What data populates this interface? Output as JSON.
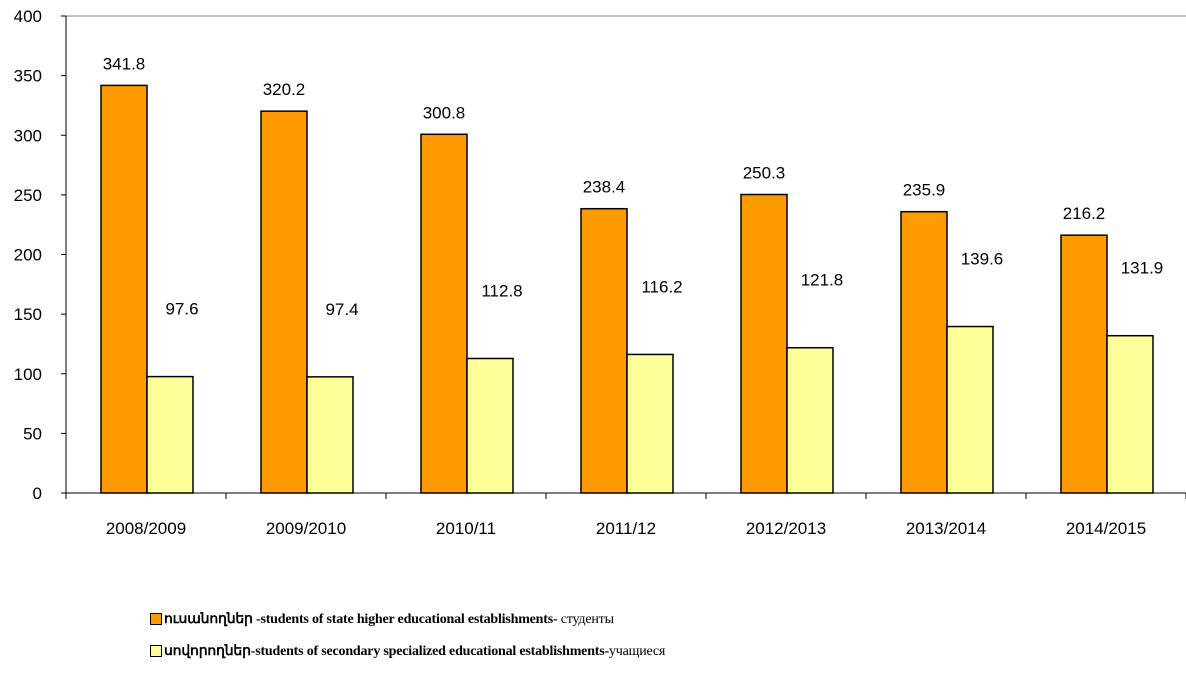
{
  "chart_data": {
    "type": "bar",
    "categories": [
      "2008/2009",
      "2009/2010",
      "2010/11",
      "2011/12",
      "2012/2013",
      "2013/2014",
      "2014/2015"
    ],
    "series": [
      {
        "name": "ուսանողներ -students of state higher educational establishments- студенты",
        "name_bold": "ուսանողներ -students of state higher educational establishments- ",
        "name_plain": "студенты",
        "color": "#FF9900",
        "values": [
          341.8,
          320.2,
          300.8,
          238.4,
          250.3,
          235.9,
          216.2
        ]
      },
      {
        "name": "սովորողներ-students of secondary specialized educational establishments-учащиеся",
        "name_bold": "սովորողներ-students of secondary specialized educational establishments-",
        "name_plain": "учащиеся",
        "color": "#FFFF99",
        "values": [
          97.6,
          97.4,
          112.8,
          116.2,
          121.8,
          139.6,
          131.9
        ]
      }
    ],
    "ylim": [
      0,
      400
    ],
    "yticks": [
      0,
      50,
      100,
      150,
      200,
      250,
      300,
      350,
      400
    ],
    "grid": false,
    "legend_position": "bottom"
  }
}
